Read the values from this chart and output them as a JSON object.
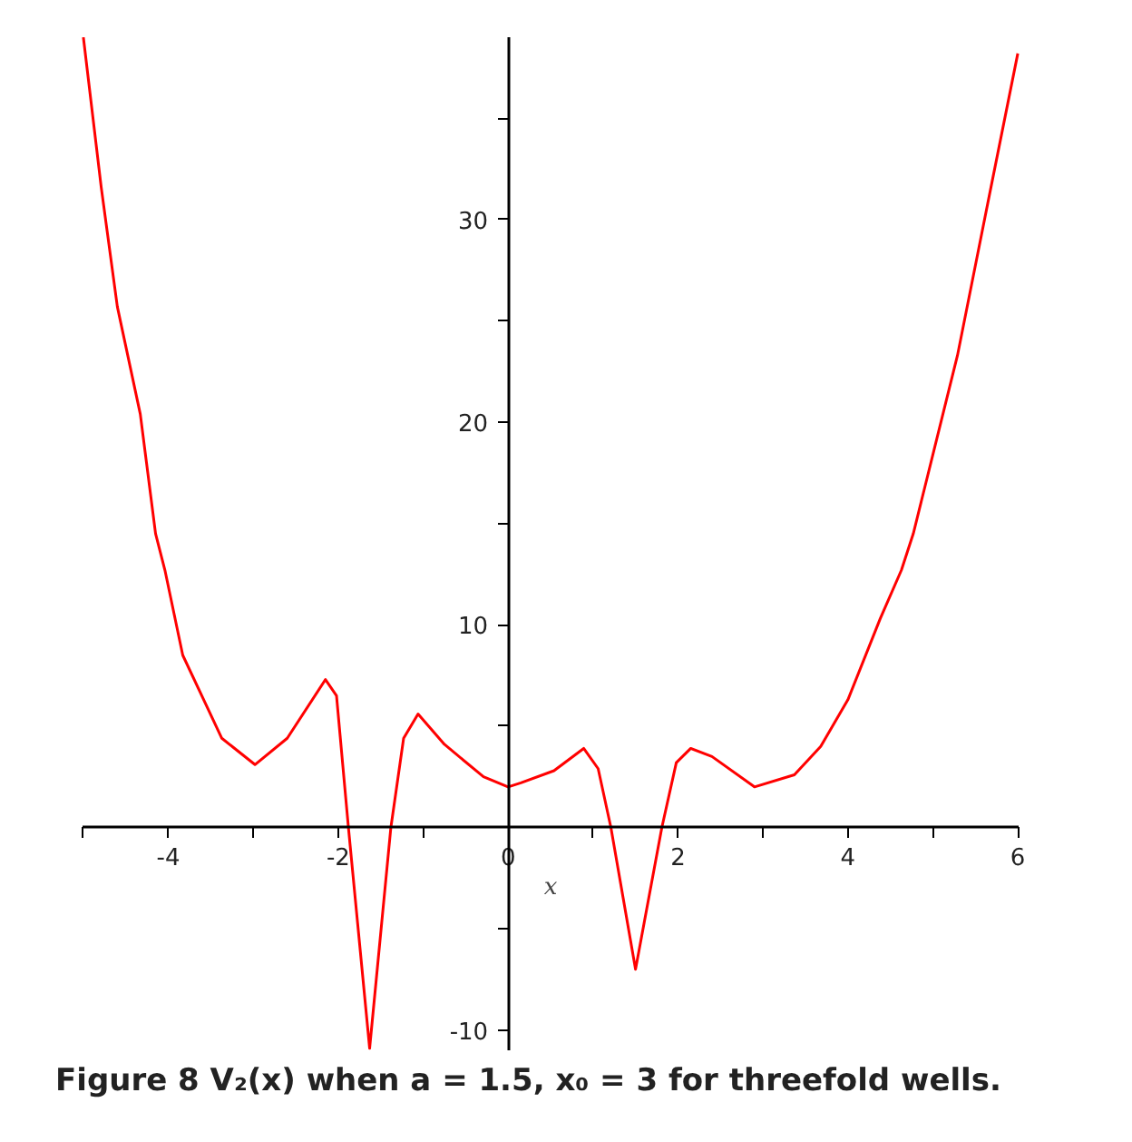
{
  "chart_data": {
    "type": "line",
    "title": "Figure 8 V₂(x) when a = 1.5, x₀ = 3 for threefold wells.",
    "xlabel": "x",
    "x": [
      -5,
      -4.79,
      -4.6,
      -4.33,
      -4.15,
      -4.04,
      -3.83,
      -3.37,
      -2.98,
      -2.6,
      -2.15,
      -2.02,
      -1.88,
      -1.63,
      -1.38,
      -1.23,
      -1.06,
      -0.75,
      -0.29,
      0,
      0.15,
      0.54,
      0.89,
      1.06,
      1.21,
      1.5,
      1.81,
      1.98,
      2.15,
      2.4,
      2.9,
      3.37,
      3.68,
      4.0,
      4.38,
      4.63,
      4.77,
      5.29,
      5.67,
      6.0
    ],
    "series": [
      {
        "color": "#ff0000",
        "values": [
          39.0,
          31.6,
          25.7,
          20.4,
          14.5,
          12.7,
          8.5,
          4.4,
          3.1,
          4.4,
          7.3,
          6.5,
          0,
          -10.9,
          0,
          4.4,
          5.6,
          4.1,
          2.5,
          2.0,
          2.2,
          2.8,
          3.9,
          2.9,
          0,
          -7.0,
          0,
          3.2,
          3.9,
          3.5,
          2.0,
          2.6,
          4.0,
          6.3,
          10.3,
          12.7,
          14.5,
          23.3,
          31.3,
          38.2
        ]
      }
    ],
    "xlim": [
      -5,
      6
    ],
    "ylim": [
      -11,
      39
    ],
    "xticks": [
      {
        "value": -5,
        "label": null
      },
      -4,
      {
        "value": -3,
        "label": null
      },
      -2,
      {
        "value": -1,
        "label": null
      },
      0,
      {
        "value": 1,
        "label": null
      },
      2,
      {
        "value": 3,
        "label": null
      },
      4,
      {
        "value": 5,
        "label": null
      },
      6
    ],
    "yticks": [
      -10,
      {
        "value": -5,
        "label": null
      },
      {
        "value": 5,
        "label": null
      },
      10,
      {
        "value": 15,
        "label": null
      },
      20,
      {
        "value": 25,
        "label": null
      },
      30,
      {
        "value": 35,
        "label": null
      }
    ],
    "marker": "none",
    "line_style": "solid"
  }
}
